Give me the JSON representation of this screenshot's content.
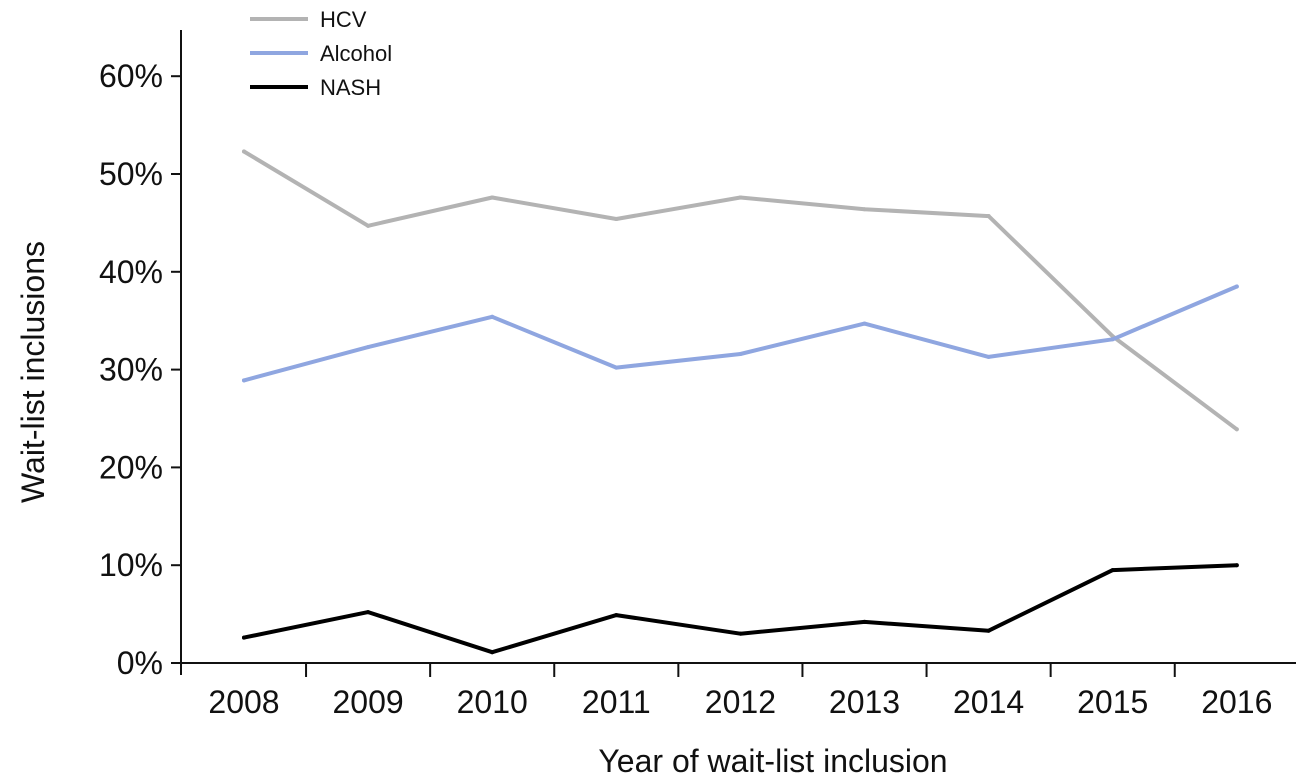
{
  "chart_data": {
    "type": "line",
    "title": "",
    "xlabel": "Year of wait-list inclusion",
    "ylabel": "Wait-list inclusions",
    "categories": [
      "2008",
      "2009",
      "2010",
      "2011",
      "2012",
      "2013",
      "2014",
      "2015",
      "2016"
    ],
    "y_ticks": [
      "0%",
      "10%",
      "20%",
      "30%",
      "40%",
      "50%",
      "60%"
    ],
    "ylim": [
      0,
      62
    ],
    "legend_position": "top-left",
    "grid": false,
    "series": [
      {
        "name": "HCV",
        "color": "#b3b3b3",
        "values": [
          52.3,
          44.7,
          47.6,
          45.4,
          47.6,
          46.4,
          45.7,
          33.4,
          23.9
        ]
      },
      {
        "name": "Alcohol",
        "color": "#8fa6e0",
        "values": [
          28.9,
          32.3,
          35.4,
          30.2,
          31.6,
          34.7,
          31.3,
          33.1,
          38.5
        ]
      },
      {
        "name": "NASH",
        "color": "#000000",
        "values": [
          2.6,
          5.2,
          1.1,
          4.9,
          3.0,
          4.2,
          3.3,
          9.5,
          10.0
        ]
      }
    ]
  }
}
